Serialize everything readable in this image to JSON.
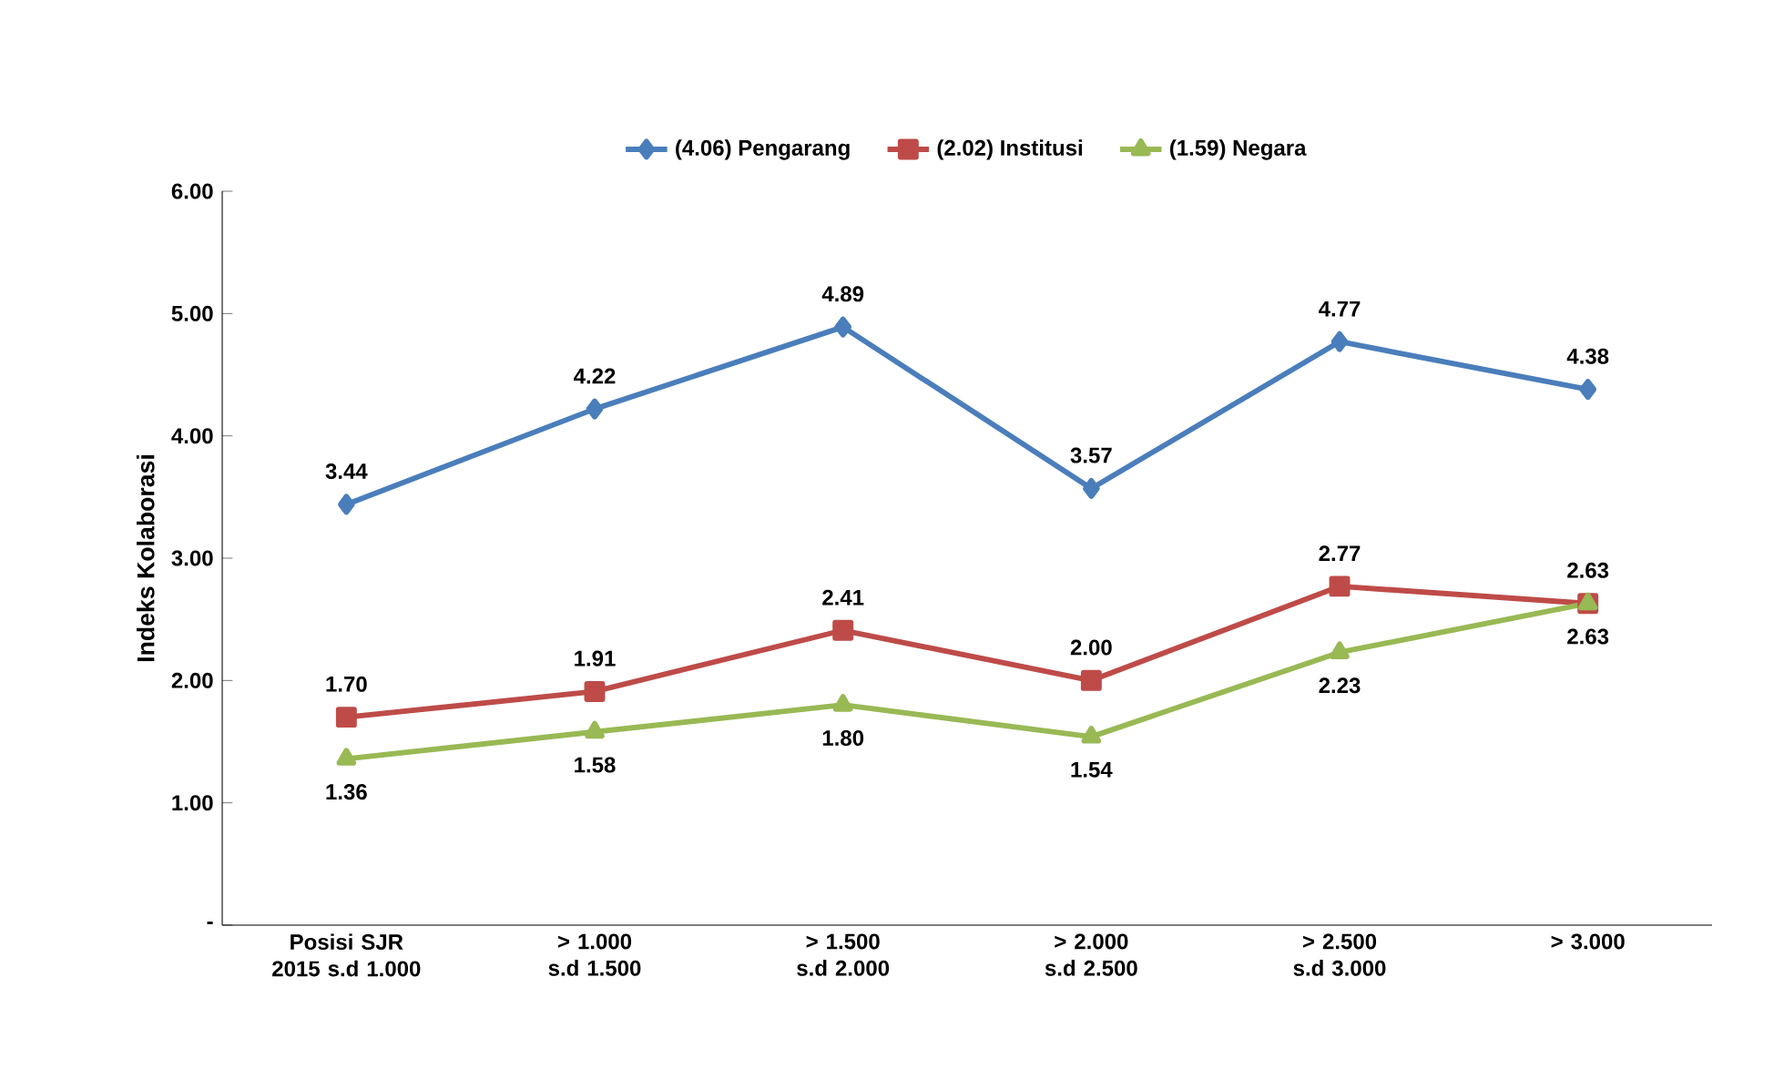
{
  "chart_data": {
    "type": "line",
    "ylabel": "Indeks Kolaborasi",
    "categories": [
      "Posisi SJR 2015 s.d 1.000",
      "> 1.000 s.d 1.500",
      "> 1.500 s.d 2.000",
      "> 2.000 s.d 2.500",
      "> 2.500 s.d 3.000",
      "> 3.000"
    ],
    "series": [
      {
        "name": "(4.06) Pengarang",
        "color": "#4a7ebb",
        "marker": "diamond",
        "values": [
          3.44,
          4.22,
          4.89,
          3.57,
          4.77,
          4.38
        ],
        "value_labels": [
          "3.44",
          "4.22",
          "4.89",
          "3.57",
          "4.77",
          "4.38"
        ]
      },
      {
        "name": "(2.02) Institusi",
        "color": "#be4b48",
        "marker": "square",
        "values": [
          1.7,
          1.91,
          2.41,
          2.0,
          2.77,
          2.63
        ],
        "value_labels": [
          "1.70",
          "1.91",
          "2.41",
          "2.00",
          "2.77",
          "2.63"
        ]
      },
      {
        "name": "(1.59) Negara",
        "color": "#98b954",
        "marker": "triangle",
        "values": [
          1.36,
          1.58,
          1.8,
          1.54,
          2.23,
          2.63
        ],
        "value_labels": [
          "1.36",
          "1.58",
          "1.80",
          "1.54",
          "2.23",
          "2.63"
        ]
      }
    ],
    "ylim": [
      0,
      6
    ],
    "yticks": [
      {
        "value": 0,
        "label": "-"
      },
      {
        "value": 1,
        "label": "1.00"
      },
      {
        "value": 2,
        "label": "2.00"
      },
      {
        "value": 3,
        "label": "3.00"
      },
      {
        "value": 4,
        "label": "4.00"
      },
      {
        "value": 5,
        "label": "5.00"
      },
      {
        "value": 6,
        "label": "6.00"
      }
    ],
    "legend": "top",
    "grid": false,
    "line_style": "solid"
  }
}
